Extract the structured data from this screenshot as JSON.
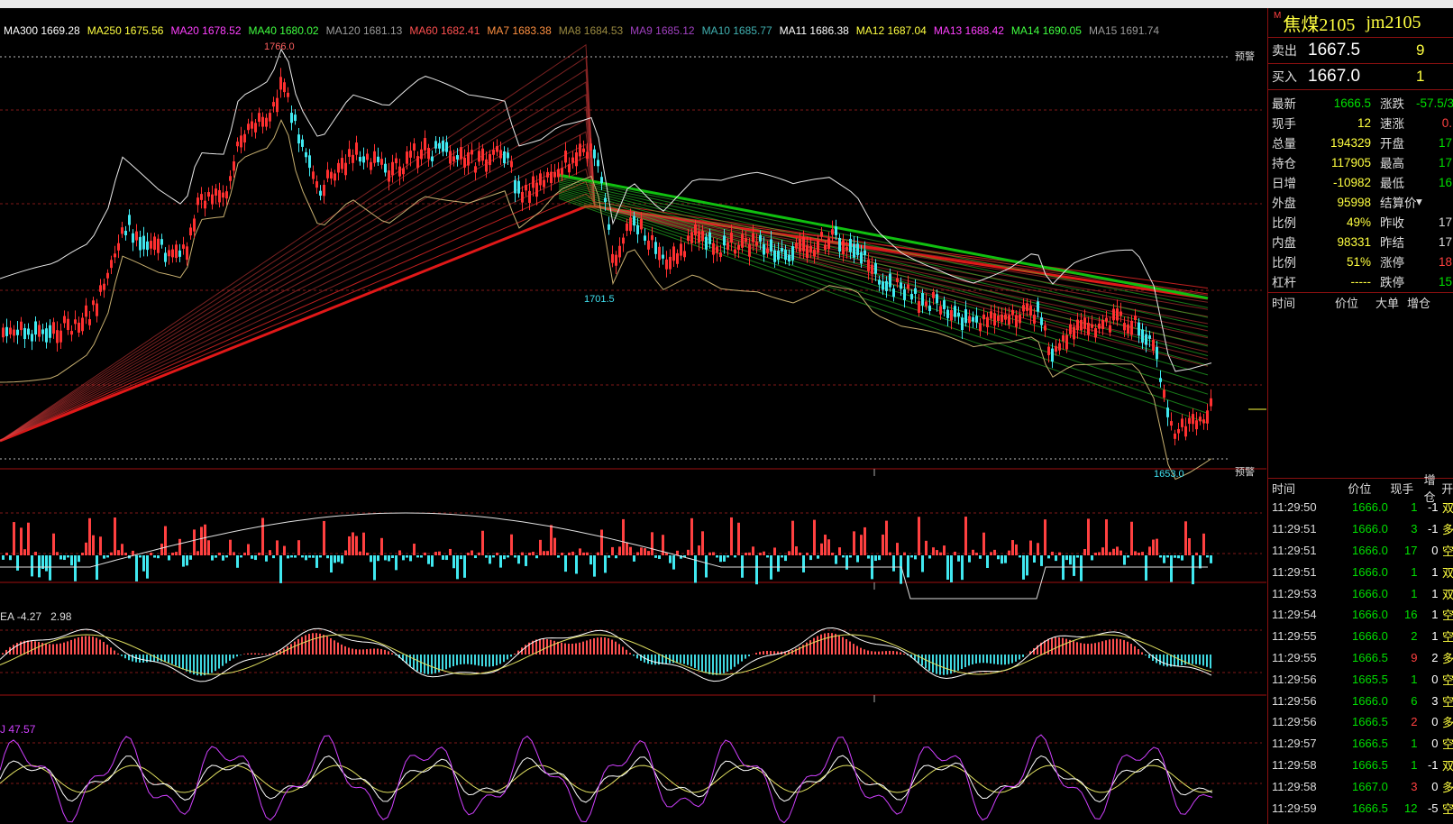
{
  "ma_indicators": [
    {
      "label": "MA300",
      "value": "1669.28",
      "color": "#ffffff"
    },
    {
      "label": "MA250",
      "value": "1675.56",
      "color": "#ffff40"
    },
    {
      "label": "MA20",
      "value": "1678.52",
      "color": "#ff40ff"
    },
    {
      "label": "MA40",
      "value": "1680.02",
      "color": "#40ff40"
    },
    {
      "label": "MA120",
      "value": "1681.13",
      "color": "#9a9a9a"
    },
    {
      "label": "MA60",
      "value": "1682.41",
      "color": "#ff5050"
    },
    {
      "label": "MA7",
      "value": "1683.38",
      "color": "#ff9040"
    },
    {
      "label": "MA8",
      "value": "1684.53",
      "color": "#9a8a40"
    },
    {
      "label": "MA9",
      "value": "1685.12",
      "color": "#a040c0"
    },
    {
      "label": "MA10",
      "value": "1685.77",
      "color": "#40b0b0"
    },
    {
      "label": "MA11",
      "value": "1686.38",
      "color": "#ffffff"
    },
    {
      "label": "MA12",
      "value": "1687.04",
      "color": "#ffff40"
    },
    {
      "label": "MA13",
      "value": "1688.42",
      "color": "#ff40ff"
    },
    {
      "label": "MA14",
      "value": "1690.05",
      "color": "#40ff40"
    },
    {
      "label": "MA15",
      "value": "1691.74",
      "color": "#9a9a9a"
    }
  ],
  "price_panel": {
    "high_label": "1766.0",
    "mid_low_label": "1701.5",
    "low_label": "1653.0",
    "alarm_label": "预警"
  },
  "macd_label": {
    "name": "EA",
    "value1": "-4.27",
    "value2": "2.98"
  },
  "kdj_label": {
    "name": "J",
    "value": "47.57"
  },
  "contract": {
    "marker": "M",
    "name": "焦煤2105",
    "code": "jm2105"
  },
  "ask": {
    "label": "卖出",
    "price": "1667.5",
    "volume": "9"
  },
  "bid": {
    "label": "买入",
    "price": "1667.0",
    "volume": "1"
  },
  "stats": [
    {
      "k1": "最新",
      "v1": "1666.5",
      "c1": "#00e000",
      "k2": "涨跌",
      "v2": "-57.5/3.",
      "c2": "#00e000"
    },
    {
      "k1": "现手",
      "v1": "12",
      "c1": "#ffff40",
      "k2": "速涨",
      "v2": "0.",
      "c2": "#ff4040"
    },
    {
      "k1": "总量",
      "v1": "194329",
      "c1": "#ffff40",
      "k2": "开盘",
      "v2": "17",
      "c2": "#00e000"
    },
    {
      "k1": "持仓",
      "v1": "117905",
      "c1": "#ffff40",
      "k2": "最高",
      "v2": "17",
      "c2": "#00e000"
    },
    {
      "k1": "日增",
      "v1": "-10982",
      "c1": "#ffff40",
      "k2": "最低",
      "v2": "16",
      "c2": "#00e000"
    },
    {
      "k1": "外盘",
      "v1": "95998",
      "c1": "#ffff40",
      "k2": "结算价",
      "v2": "",
      "c2": "#ddd"
    },
    {
      "k1": "比例",
      "v1": "49%",
      "c1": "#ffff40",
      "k2": "昨收",
      "v2": "17",
      "c2": "#ddd"
    },
    {
      "k1": "内盘",
      "v1": "98331",
      "c1": "#ffff40",
      "k2": "昨结",
      "v2": "17",
      "c2": "#ddd"
    },
    {
      "k1": "比例",
      "v1": "51%",
      "c1": "#ffff40",
      "k2": "涨停",
      "v2": "18",
      "c2": "#ff4040"
    },
    {
      "k1": "杠杆",
      "v1": "-----",
      "c1": "#ffff40",
      "k2": "跌停",
      "v2": "15",
      "c2": "#00e000"
    }
  ],
  "big_order_headers": [
    "时间",
    "价位",
    "大单",
    "增仓"
  ],
  "tick_headers": [
    "时间",
    "价位",
    "现手",
    "增仓",
    "开"
  ],
  "ticks": [
    {
      "time": "11:29:50",
      "price": "1666.0",
      "vol": "1",
      "vc": "#00e000",
      "oi": "-1",
      "type": "双"
    },
    {
      "time": "11:29:51",
      "price": "1666.0",
      "vol": "3",
      "vc": "#00e000",
      "oi": "-1",
      "type": "多"
    },
    {
      "time": "11:29:51",
      "price": "1666.0",
      "vol": "17",
      "vc": "#00e000",
      "oi": "0",
      "type": "空"
    },
    {
      "time": "11:29:51",
      "price": "1666.0",
      "vol": "1",
      "vc": "#00e000",
      "oi": "1",
      "type": "双"
    },
    {
      "time": "11:29:53",
      "price": "1666.0",
      "vol": "1",
      "vc": "#00e000",
      "oi": "1",
      "type": "双"
    },
    {
      "time": "11:29:54",
      "price": "1666.0",
      "vol": "16",
      "vc": "#00e000",
      "oi": "1",
      "type": "空"
    },
    {
      "time": "11:29:55",
      "price": "1666.0",
      "vol": "2",
      "vc": "#00e000",
      "oi": "1",
      "type": "空"
    },
    {
      "time": "11:29:55",
      "price": "1666.5",
      "vol": "9",
      "vc": "#ff4040",
      "oi": "2",
      "type": "多"
    },
    {
      "time": "11:29:56",
      "price": "1665.5",
      "vol": "1",
      "vc": "#00e000",
      "oi": "0",
      "type": "空"
    },
    {
      "time": "11:29:56",
      "price": "1666.0",
      "vol": "6",
      "vc": "#00e000",
      "oi": "3",
      "type": "空"
    },
    {
      "time": "11:29:56",
      "price": "1666.5",
      "vol": "2",
      "vc": "#ff4040",
      "oi": "0",
      "type": "多"
    },
    {
      "time": "11:29:57",
      "price": "1666.5",
      "vol": "1",
      "vc": "#00e000",
      "oi": "0",
      "type": "空"
    },
    {
      "time": "11:29:58",
      "price": "1666.5",
      "vol": "1",
      "vc": "#00e000",
      "oi": "-1",
      "type": "双"
    },
    {
      "time": "11:29:58",
      "price": "1667.0",
      "vol": "3",
      "vc": "#ff4040",
      "oi": "0",
      "type": "多"
    },
    {
      "time": "11:29:59",
      "price": "1666.5",
      "vol": "12",
      "vc": "#00e000",
      "oi": "-5",
      "type": "空"
    }
  ]
}
